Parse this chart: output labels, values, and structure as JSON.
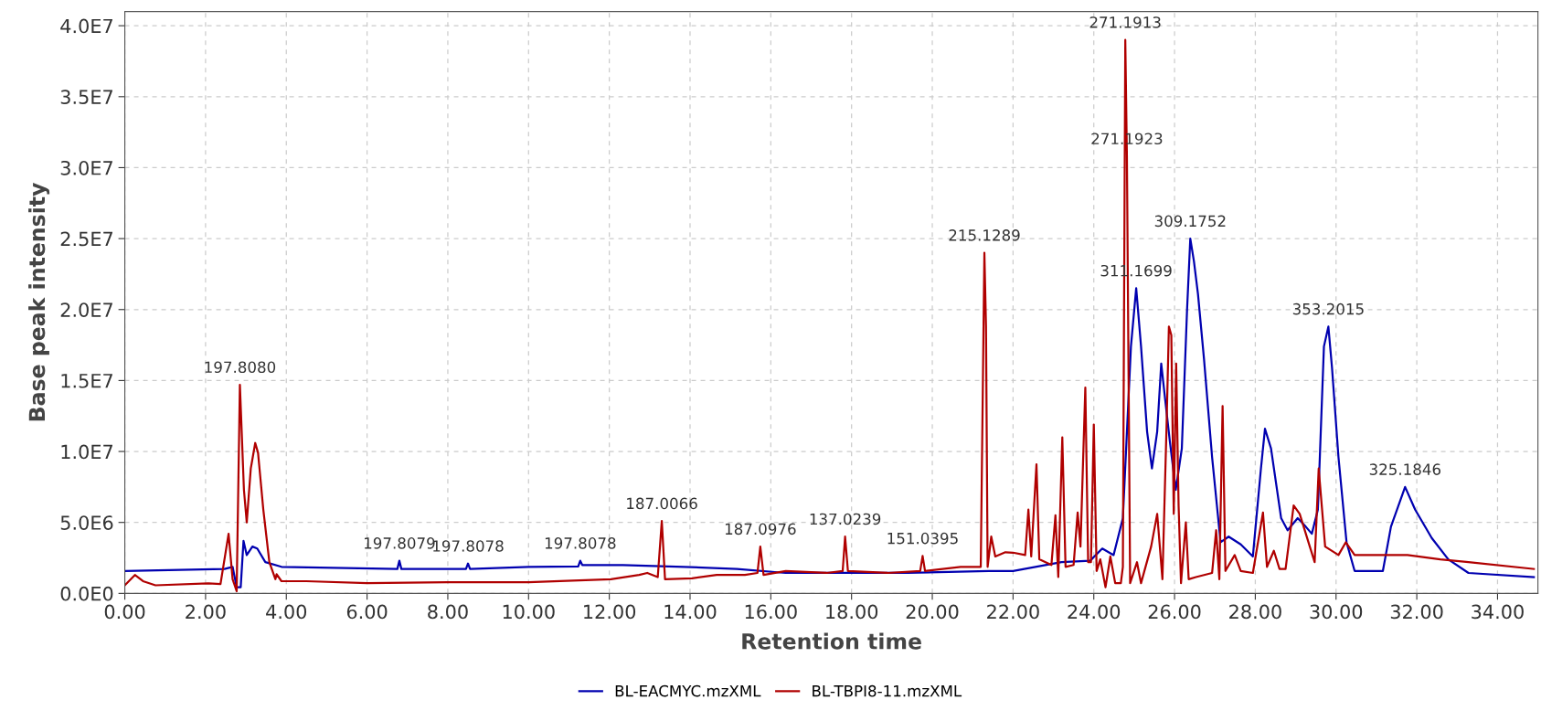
{
  "chart_data": {
    "type": "line",
    "xlabel": "Retention time",
    "ylabel": "Base peak intensity",
    "xlim": [
      0,
      35
    ],
    "ylim": [
      0,
      41000000.0
    ],
    "xticks": [
      {
        "value": 0,
        "label": "0.00"
      },
      {
        "value": 2,
        "label": "2.00"
      },
      {
        "value": 4,
        "label": "4.00"
      },
      {
        "value": 6,
        "label": "6.00"
      },
      {
        "value": 8,
        "label": "8.00"
      },
      {
        "value": 10,
        "label": "10.00"
      },
      {
        "value": 12,
        "label": "12.00"
      },
      {
        "value": 14,
        "label": "14.00"
      },
      {
        "value": 16,
        "label": "16.00"
      },
      {
        "value": 18,
        "label": "18.00"
      },
      {
        "value": 20,
        "label": "20.00"
      },
      {
        "value": 22,
        "label": "22.00"
      },
      {
        "value": 24,
        "label": "24.00"
      },
      {
        "value": 26,
        "label": "26.00"
      },
      {
        "value": 28,
        "label": "28.00"
      },
      {
        "value": 30,
        "label": "30.00"
      },
      {
        "value": 32,
        "label": "32.00"
      },
      {
        "value": 34,
        "label": "34.00"
      }
    ],
    "yticks": [
      {
        "value": 0,
        "label": "0.0E0"
      },
      {
        "value": 5000000.0,
        "label": "5.0E6"
      },
      {
        "value": 10000000.0,
        "label": "1.0E7"
      },
      {
        "value": 15000000.0,
        "label": "1.5E7"
      },
      {
        "value": 20000000.0,
        "label": "2.0E7"
      },
      {
        "value": 25000000.0,
        "label": "2.5E7"
      },
      {
        "value": 30000000.0,
        "label": "3.0E7"
      },
      {
        "value": 35000000.0,
        "label": "3.5E7"
      },
      {
        "value": 40000000.0,
        "label": "4.0E7"
      }
    ],
    "grid": true,
    "legend": "bottom",
    "line_style": "solid",
    "marker": "none",
    "series": [
      {
        "name": "BL-EACMYC.mzXML",
        "color": "#0000b0",
        "x": [
          0,
          2.47,
          2.67,
          2.77,
          2.87,
          2.94,
          3.02,
          3.16,
          3.28,
          3.48,
          3.88,
          6.75,
          6.8,
          6.85,
          8.45,
          8.5,
          8.55,
          10,
          11.23,
          11.28,
          11.33,
          12.34,
          13.85,
          15.16,
          16.37,
          19.4,
          21.4,
          22.0,
          23.2,
          23.91,
          24.21,
          24.49,
          24.72,
          24.92,
          25.05,
          25.17,
          25.32,
          25.44,
          25.57,
          25.67,
          25.77,
          25.88,
          26.03,
          26.18,
          26.31,
          26.39,
          26.48,
          26.58,
          26.73,
          26.93,
          27.14,
          27.34,
          27.64,
          27.94,
          28.14,
          28.24,
          28.39,
          28.64,
          28.8,
          29.05,
          29.25,
          29.4,
          29.55,
          29.7,
          29.81,
          29.9,
          30.06,
          30.26,
          30.46,
          31.16,
          31.36,
          31.71,
          31.96,
          32.37,
          32.78,
          33.28,
          34.9
        ],
        "values": [
          1580000.0,
          1720000.0,
          1870000.0,
          430000.0,
          430000.0,
          3700000.0,
          2700000.0,
          3300000.0,
          3160000.0,
          2200000.0,
          1870000.0,
          1720000.0,
          2300000.0,
          1720000.0,
          1720000.0,
          2100000.0,
          1720000.0,
          1870000.0,
          1900000.0,
          2300000.0,
          2000000.0,
          2000000.0,
          1870000.0,
          1720000.0,
          1440000.0,
          1440000.0,
          1580000.0,
          1580000.0,
          2200000.0,
          2300000.0,
          3160000.0,
          2700000.0,
          5300000.0,
          17400000.0,
          21500000.0,
          17400000.0,
          11400000.0,
          8800000.0,
          11400000.0,
          16200000.0,
          13600000.0,
          10800000.0,
          7300000.0,
          10200000.0,
          20000000.0,
          25000000.0,
          23400000.0,
          21100000.0,
          16500000.0,
          9600000.0,
          3600000.0,
          4000000.0,
          3450000.0,
          2600000.0,
          8800000.0,
          11600000.0,
          10200000.0,
          5300000.0,
          4450000.0,
          5300000.0,
          4700000.0,
          4200000.0,
          5900000.0,
          17400000.0,
          18800000.0,
          15900000.0,
          9600000.0,
          3600000.0,
          1580000.0,
          1580000.0,
          4700000.0,
          7500000.0,
          5900000.0,
          3900000.0,
          2400000.0,
          1440000.0,
          1150000.0
        ]
      },
      {
        "name": "BL-TBPI8-11.mzXML",
        "color": "#b00000",
        "x": [
          0,
          0.25,
          0.45,
          0.76,
          2.07,
          2.37,
          2.57,
          2.67,
          2.77,
          2.85,
          2.95,
          3.02,
          3.12,
          3.23,
          3.3,
          3.43,
          3.58,
          3.73,
          3.76,
          3.88,
          4.49,
          6.0,
          8.0,
          10,
          12.04,
          12.74,
          12.94,
          13.2,
          13.3,
          13.38,
          14.05,
          14.66,
          15.36,
          15.67,
          15.74,
          15.82,
          16.37,
          17.38,
          17.78,
          17.84,
          17.91,
          18.89,
          19.7,
          19.76,
          19.82,
          20.7,
          21.2,
          21.29,
          21.33,
          21.37,
          21.46,
          21.56,
          21.81,
          22.0,
          22.3,
          22.38,
          22.45,
          22.58,
          22.65,
          22.95,
          23.05,
          23.12,
          23.22,
          23.3,
          23.5,
          23.6,
          23.67,
          23.79,
          23.86,
          23.93,
          24.0,
          24.07,
          24.16,
          24.29,
          24.41,
          24.53,
          24.67,
          24.72,
          24.78,
          24.82,
          24.9,
          25.07,
          25.17,
          25.42,
          25.57,
          25.7,
          25.8,
          25.86,
          25.92,
          25.98,
          26.04,
          26.1,
          26.16,
          26.28,
          26.35,
          26.53,
          26.93,
          27.03,
          27.11,
          27.19,
          27.26,
          27.49,
          27.64,
          27.94,
          28.19,
          28.29,
          28.46,
          28.6,
          28.75,
          28.95,
          29.1,
          29.35,
          29.47,
          29.57,
          29.73,
          30.06,
          30.24,
          30.46,
          31.77,
          32.58,
          33.28,
          34.9
        ],
        "values": [
          570000.0,
          1300000.0,
          860000.0,
          570000.0,
          700000.0,
          660000.0,
          4200000.0,
          1000000.0,
          150000.0,
          14700000.0,
          7300000.0,
          5000000.0,
          8800000.0,
          10600000.0,
          9900000.0,
          5900000.0,
          2200000.0,
          1000000.0,
          1350000.0,
          860000.0,
          860000.0,
          720000.0,
          780000.0,
          780000.0,
          1000000.0,
          1300000.0,
          1440000.0,
          1150000.0,
          5100000.0,
          1000000.0,
          1060000.0,
          1300000.0,
          1300000.0,
          1440000.0,
          3300000.0,
          1300000.0,
          1580000.0,
          1440000.0,
          1580000.0,
          4000000.0,
          1580000.0,
          1440000.0,
          1580000.0,
          2640000.0,
          1580000.0,
          1870000.0,
          1870000.0,
          24000000.0,
          18800000.0,
          1870000.0,
          4000000.0,
          2600000.0,
          2900000.0,
          2870000.0,
          2700000.0,
          5900000.0,
          2600000.0,
          9100000.0,
          2400000.0,
          2000000.0,
          5500000.0,
          1150000.0,
          11000000.0,
          1870000.0,
          2000000.0,
          5700000.0,
          3300000.0,
          14500000.0,
          2200000.0,
          2200000.0,
          11900000.0,
          1580000.0,
          2400000.0,
          430000.0,
          2600000.0,
          720000.0,
          720000.0,
          1870000.0,
          39000000.0,
          30800000.0,
          720000.0,
          2200000.0,
          720000.0,
          3300000.0,
          5600000.0,
          1000000.0,
          11600000.0,
          18800000.0,
          18200000.0,
          5600000.0,
          16200000.0,
          6200000.0,
          720000.0,
          5000000.0,
          1000000.0,
          1150000.0,
          1440000.0,
          4450000.0,
          1000000.0,
          13200000.0,
          1580000.0,
          2700000.0,
          1580000.0,
          1440000.0,
          5700000.0,
          1870000.0,
          3000000.0,
          1720000.0,
          1720000.0,
          6200000.0,
          5600000.0,
          3300000.0,
          2200000.0,
          8800000.0,
          3300000.0,
          2700000.0,
          3600000.0,
          2700000.0,
          2700000.0,
          2400000.0,
          2200000.0,
          1720000.0
        ]
      }
    ],
    "annotations": [
      {
        "text": "197.8080",
        "x": 2.85,
        "y": 14700000.0
      },
      {
        "text": "197.8079",
        "x": 6.8,
        "y": 2300000.0
      },
      {
        "text": "197.8078",
        "x": 8.5,
        "y": 2100000.0
      },
      {
        "text": "197.8078",
        "x": 11.28,
        "y": 2300000.0
      },
      {
        "text": "187.0066",
        "x": 13.3,
        "y": 5100000.0
      },
      {
        "text": "187.0976",
        "x": 15.74,
        "y": 3300000.0
      },
      {
        "text": "137.0239",
        "x": 17.84,
        "y": 4000000.0
      },
      {
        "text": "151.0395",
        "x": 19.76,
        "y": 2640000.0
      },
      {
        "text": "215.1289",
        "x": 21.29,
        "y": 24000000.0
      },
      {
        "text": "271.1913",
        "x": 24.78,
        "y": 39000000.0
      },
      {
        "text": "271.1923",
        "x": 24.82,
        "y": 30800000.0
      },
      {
        "text": "311.1699",
        "x": 25.05,
        "y": 21500000.0
      },
      {
        "text": "309.1752",
        "x": 26.39,
        "y": 25000000.0
      },
      {
        "text": "353.2015",
        "x": 29.81,
        "y": 18800000.0
      },
      {
        "text": "325.1846",
        "x": 31.71,
        "y": 7500000.0
      }
    ]
  }
}
